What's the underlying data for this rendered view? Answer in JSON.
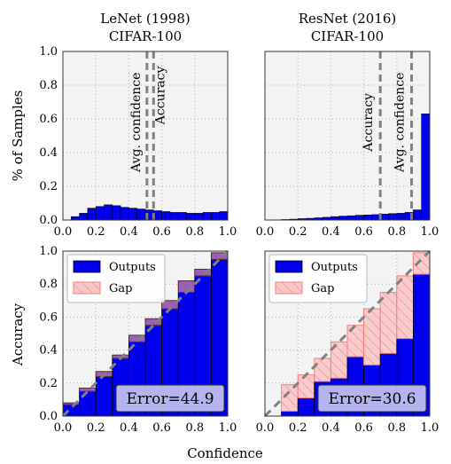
{
  "figure": {
    "xlabel": "Confidence",
    "top_ylabel": "% of Samples",
    "bottom_ylabel": "Accuracy",
    "ticks": [
      "0.0",
      "0.2",
      "0.4",
      "0.6",
      "0.8",
      "1.0"
    ]
  },
  "colors": {
    "panel_bg": "#f3f3f3",
    "outputs": "#0000ee",
    "gap_fill": "#f8c8c8",
    "gap_edge": "#f28080",
    "overlap": "#7b3fb0",
    "dashed": "#808080",
    "textbox": "#c8c8f0"
  },
  "chart_data": [
    {
      "type": "bar",
      "id": "lenet-hist",
      "title_line1": "LeNet (1998)",
      "title_line2": "CIFAR-100",
      "xlim": [
        0,
        1
      ],
      "ylim": [
        0,
        1
      ],
      "bin_centers": [
        0.025,
        0.075,
        0.125,
        0.175,
        0.225,
        0.275,
        0.325,
        0.375,
        0.425,
        0.475,
        0.525,
        0.575,
        0.625,
        0.675,
        0.725,
        0.775,
        0.825,
        0.875,
        0.925,
        0.975
      ],
      "values": [
        0.0,
        0.02,
        0.04,
        0.07,
        0.08,
        0.09,
        0.085,
        0.075,
        0.07,
        0.065,
        0.06,
        0.055,
        0.05,
        0.045,
        0.045,
        0.04,
        0.04,
        0.045,
        0.045,
        0.05
      ],
      "vlines": [
        {
          "label": "Avg. confidence",
          "x": 0.51
        },
        {
          "label": "Accuracy",
          "x": 0.55
        }
      ]
    },
    {
      "type": "bar",
      "id": "resnet-hist",
      "title_line1": "ResNet (2016)",
      "title_line2": "CIFAR-100",
      "xlim": [
        0,
        1
      ],
      "ylim": [
        0,
        1
      ],
      "bin_centers": [
        0.025,
        0.075,
        0.125,
        0.175,
        0.225,
        0.275,
        0.325,
        0.375,
        0.425,
        0.475,
        0.525,
        0.575,
        0.625,
        0.675,
        0.725,
        0.775,
        0.825,
        0.875,
        0.925,
        0.975
      ],
      "values": [
        0.0,
        0.0,
        0.003,
        0.005,
        0.008,
        0.01,
        0.013,
        0.016,
        0.02,
        0.023,
        0.025,
        0.028,
        0.03,
        0.032,
        0.035,
        0.038,
        0.04,
        0.045,
        0.06,
        0.63
      ],
      "vlines": [
        {
          "label": "Accuracy",
          "x": 0.7
        },
        {
          "label": "Avg. confidence",
          "x": 0.89
        }
      ]
    },
    {
      "type": "bar",
      "id": "lenet-reliability",
      "xlim": [
        0,
        1
      ],
      "ylim": [
        0,
        1
      ],
      "bin_edges": [
        0,
        0.1,
        0.2,
        0.3,
        0.4,
        0.5,
        0.6,
        0.7,
        0.8,
        0.9,
        1.0
      ],
      "outputs": [
        0.07,
        0.15,
        0.24,
        0.35,
        0.45,
        0.55,
        0.65,
        0.75,
        0.85,
        0.95
      ],
      "gap_to": [
        0.08,
        0.17,
        0.27,
        0.37,
        0.49,
        0.59,
        0.7,
        0.82,
        0.89,
        0.99
      ],
      "legend": [
        "Outputs",
        "Gap"
      ],
      "annotation": "Error=44.9"
    },
    {
      "type": "bar",
      "id": "resnet-reliability",
      "xlim": [
        0,
        1
      ],
      "ylim": [
        0,
        1
      ],
      "bin_edges": [
        0,
        0.1,
        0.2,
        0.3,
        0.4,
        0.5,
        0.6,
        0.7,
        0.8,
        0.9,
        1.0
      ],
      "outputs": [
        0.0,
        0.03,
        0.11,
        0.21,
        0.23,
        0.36,
        0.31,
        0.38,
        0.47,
        0.86
      ],
      "gap_to": [
        0.0,
        0.19,
        0.25,
        0.35,
        0.45,
        0.55,
        0.65,
        0.75,
        0.85,
        0.99
      ],
      "legend": [
        "Outputs",
        "Gap"
      ],
      "annotation": "Error=30.6"
    }
  ]
}
